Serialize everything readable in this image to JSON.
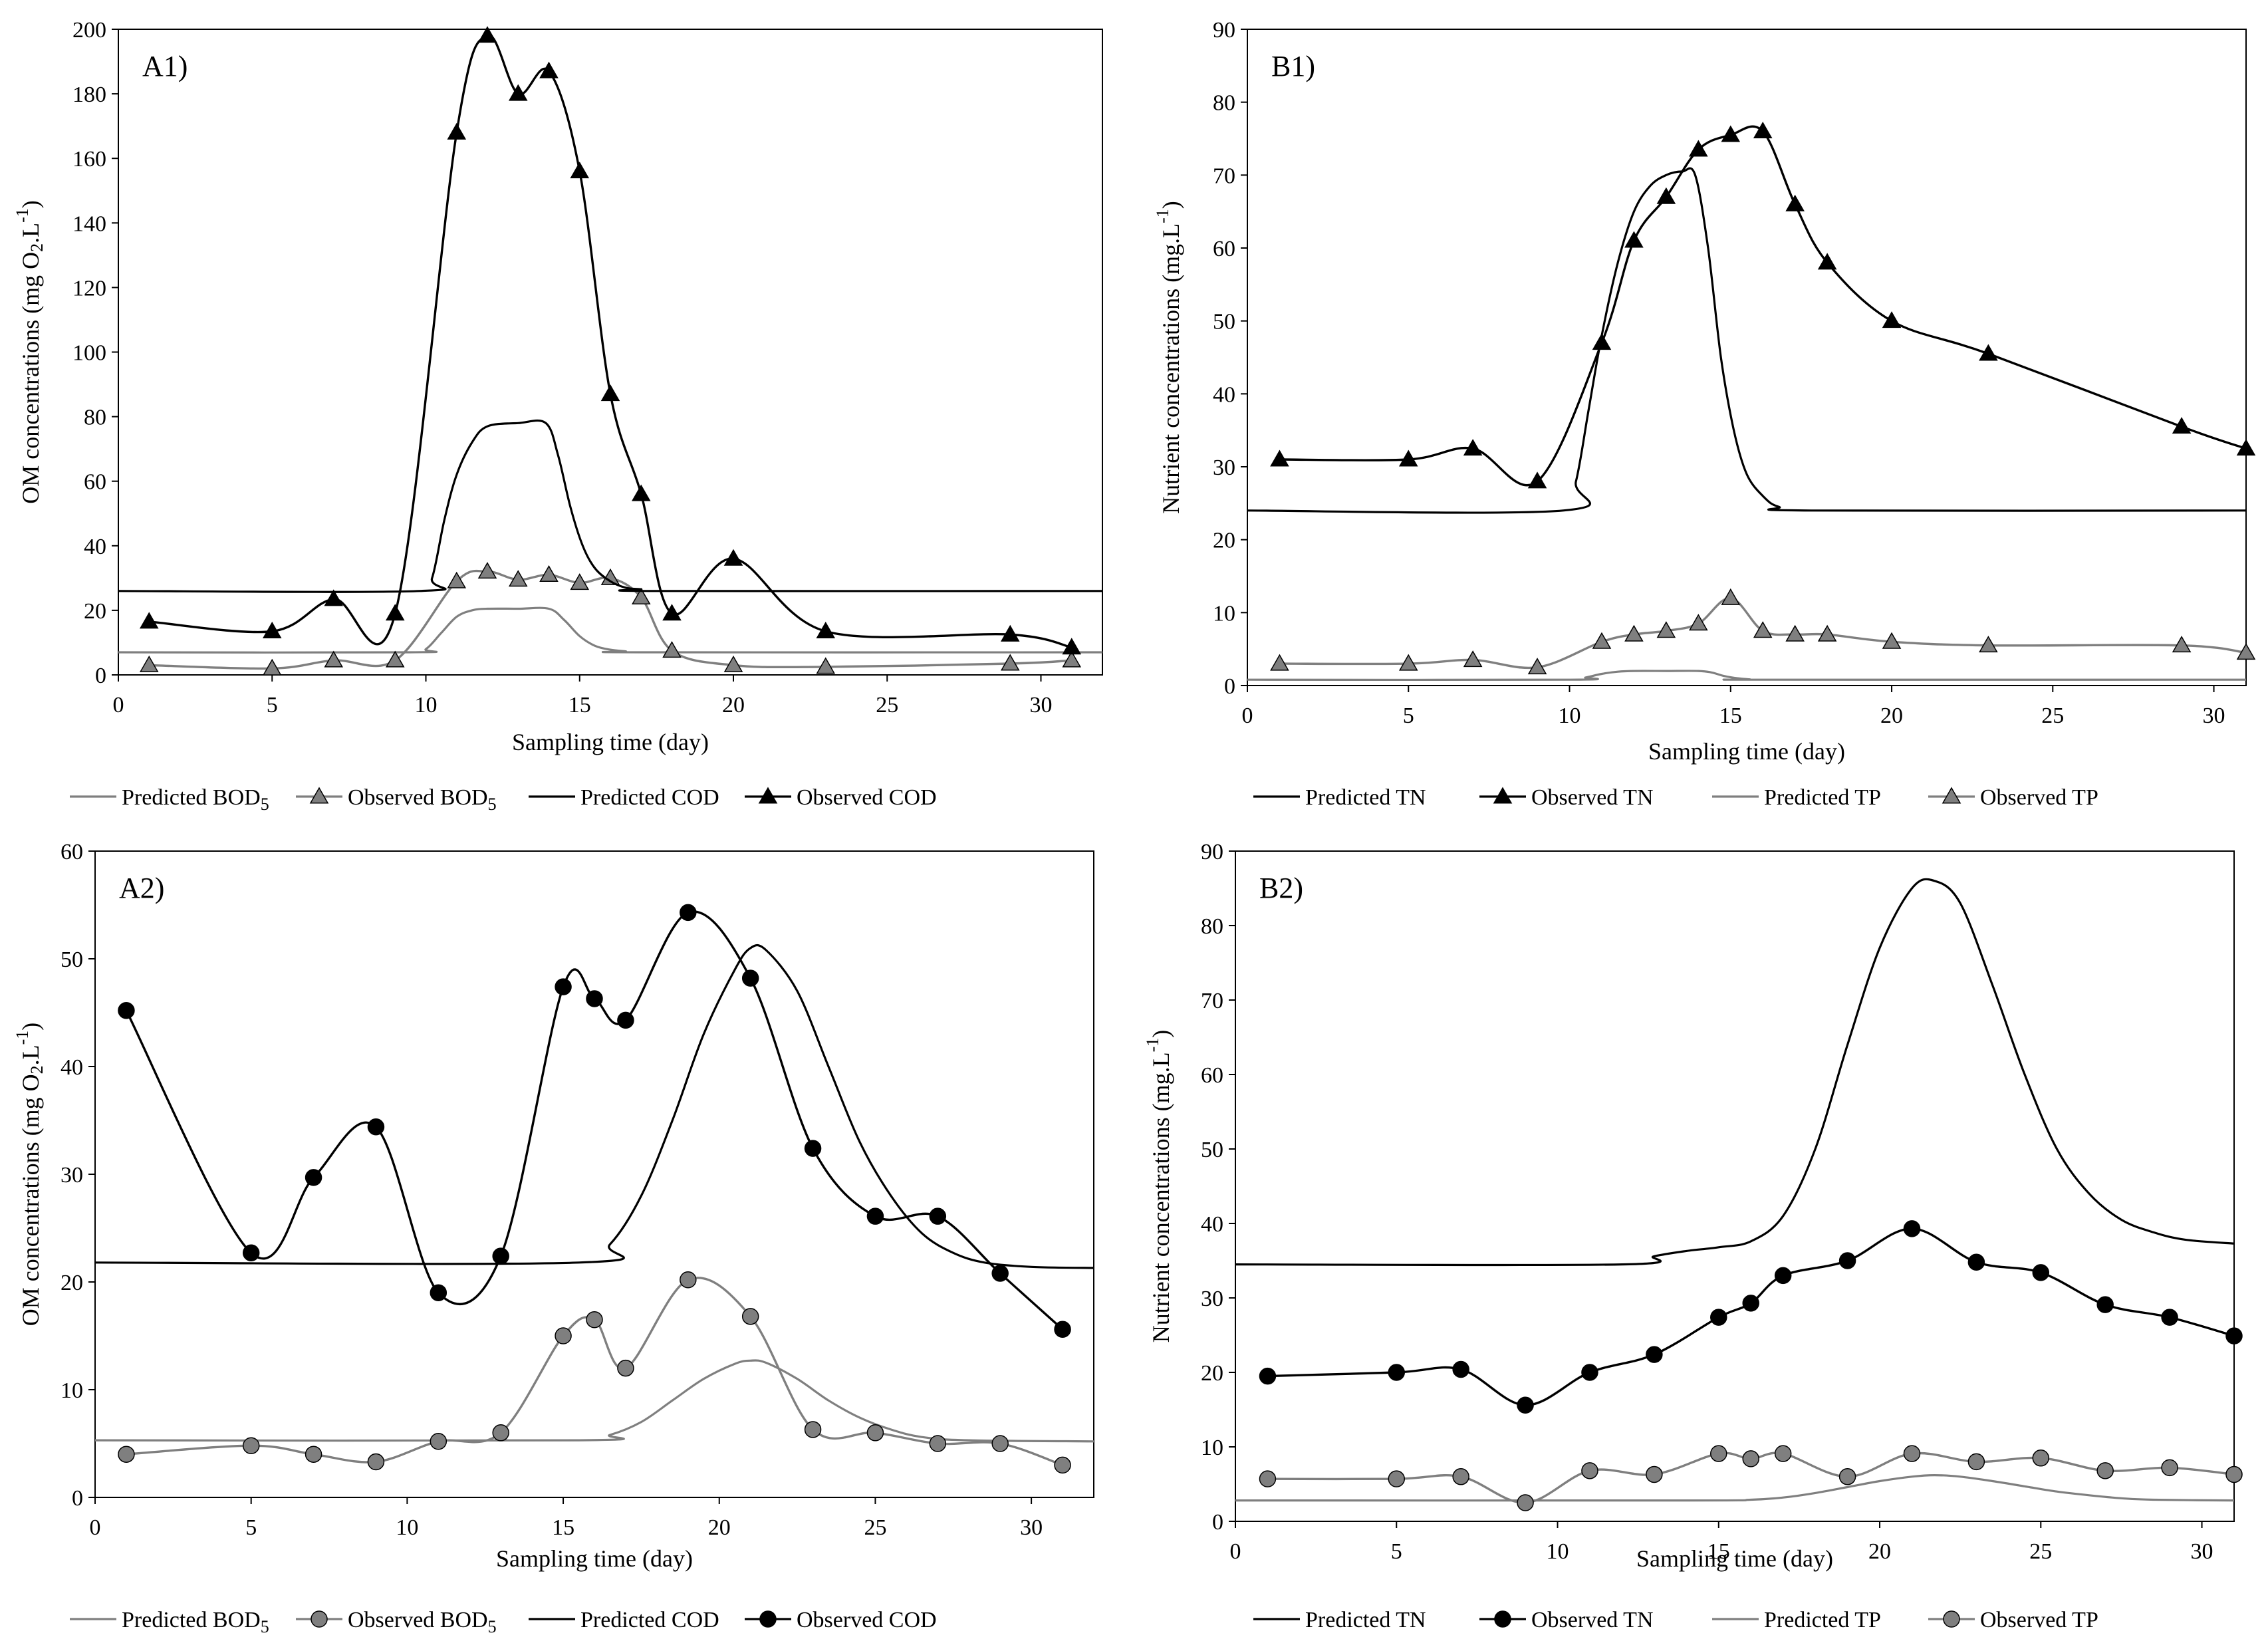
{
  "chart_data": [
    {
      "panel_label": "A1)",
      "type": "line",
      "xlabel": "Sampling time (day)",
      "ylabel": "OM concentrations (mg O2.L-1)",
      "ylabel_parts": {
        "a": "OM concentrations (mg O",
        "sub": "2",
        "b": ".L",
        "sup": "-1",
        "c": ")"
      },
      "xlim": [
        0,
        32
      ],
      "ylim": [
        0,
        200
      ],
      "xticks": [
        0,
        5,
        10,
        15,
        20,
        25,
        30
      ],
      "yticks": [
        0,
        20,
        40,
        60,
        80,
        100,
        120,
        140,
        160,
        180,
        200
      ],
      "legend_position": "bottom",
      "series": [
        {
          "name": "Predicted BOD5",
          "name_main": "Predicted BOD",
          "name_sub": "5",
          "kind": "predicted",
          "color": "#7f7f7f",
          "marker": "none",
          "x": [
            0,
            9.5,
            10,
            10.5,
            11,
            11.5,
            12,
            13,
            14,
            14.5,
            15,
            15.5,
            16,
            16.5,
            17,
            32
          ],
          "y": [
            7,
            7,
            8,
            13,
            18,
            20,
            20.5,
            20.5,
            20.5,
            17,
            12,
            9,
            7.8,
            7.3,
            7,
            7
          ]
        },
        {
          "name": "Observed BOD5",
          "name_main": "Observed BOD",
          "name_sub": "5",
          "kind": "observed",
          "color": "#7f7f7f",
          "marker": "triangle",
          "marker_fill": "#7f7f7f",
          "x": [
            1,
            5,
            7,
            9,
            11,
            12,
            13,
            14,
            15,
            16,
            17,
            18,
            20,
            23,
            29,
            31
          ],
          "y": [
            3,
            2,
            4.5,
            4.5,
            29,
            32,
            29.5,
            31,
            28.5,
            30,
            24,
            7.5,
            3,
            2.5,
            3.5,
            4.5
          ]
        },
        {
          "name": "Predicted COD",
          "kind": "predicted",
          "color": "#000000",
          "marker": "none",
          "x": [
            0,
            9.8,
            10.2,
            10.6,
            11,
            11.5,
            12,
            13,
            13.9,
            14.3,
            14.7,
            15.1,
            15.5,
            16,
            16.5,
            17,
            17.5,
            32
          ],
          "y": [
            26,
            26,
            30,
            48,
            62,
            72,
            77,
            78,
            78,
            68,
            52,
            40,
            33,
            29,
            27,
            26.5,
            26,
            26
          ]
        },
        {
          "name": "Observed COD",
          "kind": "observed",
          "color": "#000000",
          "marker": "triangle",
          "marker_fill": "#000000",
          "x": [
            1,
            5,
            7,
            9,
            11,
            12,
            13,
            14,
            15,
            16,
            17,
            18,
            20,
            23,
            29,
            31
          ],
          "y": [
            16.5,
            13.5,
            23.5,
            19,
            168,
            198,
            180,
            187,
            156,
            87,
            56,
            19,
            36,
            13.5,
            12.5,
            8.5
          ]
        }
      ]
    },
    {
      "panel_label": "B1)",
      "type": "line",
      "xlabel": "Sampling time (day)",
      "ylabel": "Nutrient concentrations (mg.L-1)",
      "ylabel_parts": {
        "a": "Nutrient concentrations (mg.L",
        "sup": "-1",
        "c": ")"
      },
      "xlim": [
        0,
        31
      ],
      "ylim": [
        0,
        90
      ],
      "xticks": [
        0,
        5,
        10,
        15,
        20,
        25,
        30
      ],
      "yticks": [
        0,
        10,
        20,
        30,
        40,
        50,
        60,
        70,
        80,
        90
      ],
      "legend_position": "bottom",
      "series": [
        {
          "name": "Predicted TN",
          "kind": "predicted",
          "color": "#000000",
          "marker": "none",
          "x": [
            0,
            9.8,
            10.2,
            10.6,
            11,
            11.5,
            12,
            12.5,
            13,
            13.5,
            13.9,
            14.3,
            14.7,
            15.1,
            15.5,
            16,
            16.5,
            17.5,
            31
          ],
          "y": [
            24,
            24,
            28,
            38,
            48,
            58,
            65,
            68.5,
            70,
            70.5,
            70,
            60,
            45,
            35,
            29,
            26,
            24.5,
            24,
            24
          ]
        },
        {
          "name": "Observed TN",
          "kind": "observed",
          "color": "#000000",
          "marker": "triangle",
          "marker_fill": "#000000",
          "x": [
            1,
            5,
            7,
            9,
            11,
            12,
            13,
            14,
            15,
            16,
            17,
            18,
            20,
            23,
            29,
            31
          ],
          "y": [
            31,
            31,
            32.5,
            28,
            47,
            61,
            67,
            73.5,
            75.5,
            76,
            66,
            58,
            50,
            45.5,
            35.5,
            32.5
          ]
        },
        {
          "name": "Predicted TP",
          "kind": "predicted",
          "color": "#7f7f7f",
          "marker": "none",
          "x": [
            0,
            10,
            10.5,
            11,
            11.5,
            12,
            13,
            14,
            14.4,
            14.8,
            15.2,
            15.6,
            16,
            31
          ],
          "y": [
            0.8,
            0.8,
            1.1,
            1.6,
            1.9,
            2,
            2,
            2,
            1.8,
            1.3,
            1,
            0.85,
            0.8,
            0.8
          ]
        },
        {
          "name": "Observed TP",
          "kind": "observed",
          "color": "#7f7f7f",
          "marker": "triangle",
          "marker_fill": "#7f7f7f",
          "x": [
            1,
            5,
            7,
            9,
            11,
            12,
            13,
            14,
            15,
            16,
            17,
            18,
            20,
            23,
            29,
            31
          ],
          "y": [
            3,
            3,
            3.5,
            2.5,
            6,
            7,
            7.5,
            8.5,
            12,
            7.5,
            7,
            7,
            6,
            5.5,
            5.5,
            4.5
          ]
        }
      ]
    },
    {
      "panel_label": "A2)",
      "type": "line",
      "xlabel": "Sampling time (day)",
      "ylabel": "OM concentrations (mg O2.L-1)",
      "ylabel_parts": {
        "a": "OM concentrations (mg O",
        "sub": "2",
        "b": ".L",
        "sup": "-1",
        "c": ")"
      },
      "xlim": [
        0,
        32
      ],
      "ylim": [
        0,
        60
      ],
      "xticks": [
        0,
        5,
        10,
        15,
        20,
        25,
        30
      ],
      "yticks": [
        0,
        10,
        20,
        30,
        40,
        50,
        60
      ],
      "legend_position": "bottom",
      "series": [
        {
          "name": "Predicted BOD5",
          "name_main": "Predicted BOD",
          "name_sub": "5",
          "kind": "predicted",
          "color": "#7f7f7f",
          "marker": "none",
          "x": [
            0,
            15.5,
            16.5,
            17.5,
            18.5,
            19.5,
            20.5,
            21,
            21.5,
            22.5,
            23.5,
            24.5,
            25.5,
            26.5,
            28,
            32
          ],
          "y": [
            5.3,
            5.3,
            5.8,
            7,
            9,
            11,
            12.4,
            12.7,
            12.5,
            11,
            9,
            7.4,
            6.3,
            5.6,
            5.3,
            5.2
          ]
        },
        {
          "name": "Observed BOD5",
          "name_main": "Observed BOD",
          "name_sub": "5",
          "kind": "observed",
          "color": "#7f7f7f",
          "marker": "circle",
          "marker_fill": "#7f7f7f",
          "x": [
            1,
            5,
            7,
            9,
            11,
            13,
            15,
            16,
            17,
            19,
            21,
            23,
            25,
            27,
            29,
            31
          ],
          "y": [
            4,
            4.8,
            4,
            3.3,
            5.2,
            6,
            15,
            16.5,
            12,
            20.2,
            16.8,
            6.3,
            6,
            5,
            5,
            3
          ]
        },
        {
          "name": "Predicted COD",
          "kind": "predicted",
          "color": "#000000",
          "marker": "none",
          "x": [
            0,
            15.5,
            16.5,
            17.5,
            18.5,
            19.5,
            20.5,
            21,
            21.5,
            22.5,
            23.5,
            24.5,
            25.5,
            26.5,
            27.5,
            28.5,
            30,
            32
          ],
          "y": [
            21.8,
            21.8,
            23.5,
            28,
            35,
            43,
            49,
            51,
            50.8,
            47,
            40,
            33,
            28,
            24.5,
            22.7,
            21.8,
            21.4,
            21.3
          ]
        },
        {
          "name": "Observed COD",
          "kind": "observed",
          "color": "#000000",
          "marker": "circle",
          "marker_fill": "#000000",
          "x": [
            1,
            5,
            7,
            9,
            11,
            13,
            15,
            16,
            17,
            19,
            21,
            23,
            25,
            27,
            29,
            31
          ],
          "y": [
            45.2,
            22.7,
            29.7,
            34.4,
            19,
            22.4,
            47.4,
            46.3,
            44.3,
            54.3,
            48.2,
            32.4,
            26.1,
            26.1,
            20.8,
            15.6
          ]
        }
      ]
    },
    {
      "panel_label": "B2)",
      "type": "line",
      "xlabel": "Sampling time (day)",
      "ylabel": "Nutrient concentrations (mg.L-1)",
      "ylabel_parts": {
        "a": "Nutrient concentrations (mg.L",
        "sup": "-1",
        "c": ")"
      },
      "xlim": [
        0,
        31
      ],
      "ylim": [
        0,
        90
      ],
      "xticks": [
        0,
        5,
        10,
        15,
        20,
        25,
        30
      ],
      "yticks": [
        0,
        10,
        20,
        30,
        40,
        50,
        60,
        70,
        80,
        90
      ],
      "legend_position": "bottom",
      "series": [
        {
          "name": "Predicted TN",
          "kind": "predicted",
          "color": "#000000",
          "marker": "none",
          "x": [
            0,
            12,
            13,
            14,
            15,
            16,
            17,
            18,
            19,
            20,
            21,
            21.7,
            22.5,
            23.5,
            24.5,
            25.5,
            26.5,
            27.5,
            28.5,
            29.5,
            31
          ],
          "y": [
            34.5,
            34.5,
            35.6,
            36.3,
            36.8,
            37.6,
            41,
            50,
            64,
            77,
            85,
            86,
            83,
            72,
            60,
            50,
            44,
            40.5,
            38.8,
            37.8,
            37.3
          ]
        },
        {
          "name": "Observed TN",
          "kind": "observed",
          "color": "#000000",
          "marker": "circle",
          "marker_fill": "#000000",
          "x": [
            1,
            5,
            7,
            9,
            11,
            13,
            15,
            16,
            17,
            19,
            21,
            23,
            25,
            27,
            29,
            31
          ],
          "y": [
            19.5,
            20,
            20.4,
            15.6,
            20,
            22.4,
            27.4,
            29.3,
            33,
            35,
            39.3,
            34.8,
            33.4,
            29.1,
            27.4,
            24.9
          ]
        },
        {
          "name": "Predicted TP",
          "kind": "predicted",
          "color": "#7f7f7f",
          "marker": "none",
          "x": [
            0,
            14,
            16,
            17,
            18,
            19,
            20,
            21,
            21.7,
            22.5,
            23.5,
            24.5,
            25.5,
            26.5,
            27.5,
            28.5,
            31
          ],
          "y": [
            2.8,
            2.8,
            2.9,
            3.2,
            3.8,
            4.6,
            5.4,
            6,
            6.2,
            6,
            5.4,
            4.7,
            4,
            3.5,
            3.1,
            2.9,
            2.8
          ]
        },
        {
          "name": "Observed TP",
          "kind": "observed",
          "color": "#7f7f7f",
          "marker": "circle",
          "marker_fill": "#7f7f7f",
          "x": [
            1,
            5,
            7,
            9,
            11,
            13,
            15,
            16,
            17,
            19,
            21,
            23,
            25,
            27,
            29,
            31
          ],
          "y": [
            5.7,
            5.7,
            6,
            2.5,
            6.8,
            6.3,
            9.1,
            8.4,
            9.1,
            6,
            9.1,
            8,
            8.5,
            6.8,
            7.2,
            6.3
          ]
        }
      ]
    }
  ]
}
